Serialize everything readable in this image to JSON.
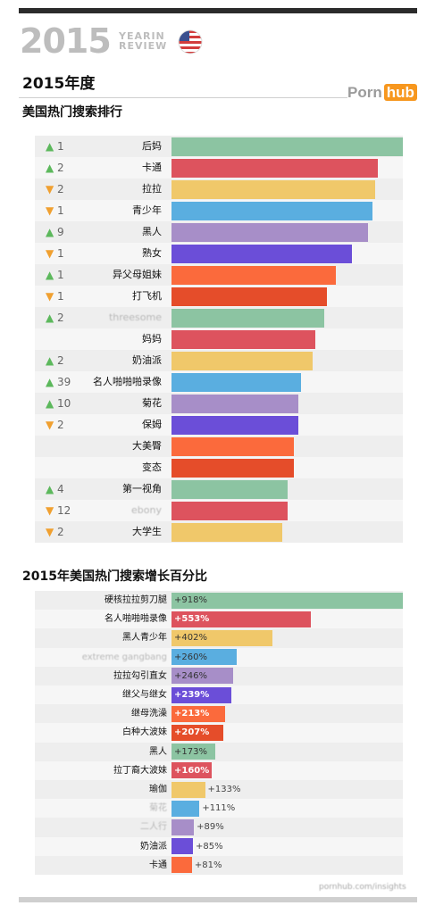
{
  "brand": {
    "year": "2015",
    "year_in_review": [
      "YEARIN",
      "REVIEW"
    ],
    "flag_icon": "us-flag-icon"
  },
  "header": {
    "title": "2015年度",
    "logo_part1": "Porn",
    "logo_part2": "hub"
  },
  "colors": {
    "green": "#8cc4a2",
    "red": "#dd535e",
    "yellow": "#f0c86a",
    "blue": "#5aaee0",
    "lavender": "#a78ec8",
    "purple": "#6b4ed8",
    "orange": "#fb6a3c",
    "darkorange": "#e54d2a",
    "up": "#5cb85c",
    "down": "#f0a030"
  },
  "chart_data": [
    {
      "type": "bar",
      "title": "美国热门搜索排行",
      "categories": [
        "后妈",
        "卡通",
        "拉拉",
        "青少年",
        "黑人",
        "熟女",
        "异父母姐妹",
        "打飞机",
        "threesome",
        "妈妈",
        "奶油派",
        "名人啪啪啪录像",
        "菊花",
        "保姆",
        "大美臀",
        "变态",
        "第一视角",
        "ebony",
        "大学生"
      ],
      "rank_change": [
        {
          "dir": "up",
          "n": "1"
        },
        {
          "dir": "up",
          "n": "2"
        },
        {
          "dir": "down",
          "n": "2"
        },
        {
          "dir": "down",
          "n": "1"
        },
        {
          "dir": "up",
          "n": "9"
        },
        {
          "dir": "down",
          "n": "1"
        },
        {
          "dir": "up",
          "n": "1"
        },
        {
          "dir": "down",
          "n": "1"
        },
        {
          "dir": "up",
          "n": "2"
        },
        {
          "dir": "",
          "n": ""
        },
        {
          "dir": "up",
          "n": "2"
        },
        {
          "dir": "up",
          "n": "39"
        },
        {
          "dir": "up",
          "n": "10"
        },
        {
          "dir": "down",
          "n": "2"
        },
        {
          "dir": "",
          "n": ""
        },
        {
          "dir": "",
          "n": ""
        },
        {
          "dir": "up",
          "n": "4"
        },
        {
          "dir": "down",
          "n": "12"
        },
        {
          "dir": "down",
          "n": "2"
        }
      ],
      "values": [
        100,
        89,
        88,
        87,
        85,
        78,
        71,
        67,
        66,
        62,
        61,
        56,
        55,
        55,
        53,
        53,
        50,
        50,
        48
      ],
      "bar_colors": [
        "green",
        "red",
        "yellow",
        "blue",
        "lavender",
        "purple",
        "orange",
        "darkorange",
        "green",
        "red",
        "yellow",
        "blue",
        "lavender",
        "purple",
        "orange",
        "darkorange",
        "green",
        "red",
        "yellow"
      ],
      "blurred": [
        8,
        17
      ],
      "xlim": [
        0,
        100
      ]
    },
    {
      "type": "bar",
      "title": "2015年美国热门搜索增长百分比",
      "categories": [
        "硬核拉拉剪刀腿",
        "名人啪啪啪录像",
        "黑人青少年",
        "extreme gangbang",
        "拉拉勾引直女",
        "继父与继女",
        "继母洗澡",
        "白种大波妹",
        "黑人",
        "拉丁裔大波妹",
        "瑜伽",
        "菊花",
        "二人行",
        "奶油派",
        "卡通"
      ],
      "values": [
        918,
        553,
        402,
        260,
        246,
        239,
        213,
        207,
        173,
        160,
        133,
        111,
        89,
        85,
        81
      ],
      "value_labels": [
        "+918%",
        "+553%",
        "+402%",
        "+260%",
        "+246%",
        "+239%",
        "+213%",
        "+207%",
        "+173%",
        "+160%",
        "+133%",
        "+111%",
        "+89%",
        "+85%",
        "+81%"
      ],
      "bar_colors": [
        "green",
        "red",
        "yellow",
        "blue",
        "lavender",
        "purple",
        "orange",
        "darkorange",
        "green",
        "red",
        "yellow",
        "blue",
        "lavender",
        "purple",
        "orange"
      ],
      "blurred": [
        3,
        11,
        12
      ],
      "xlim": [
        0,
        918
      ]
    }
  ],
  "footer": {
    "source": "pornhub.com/insights"
  }
}
